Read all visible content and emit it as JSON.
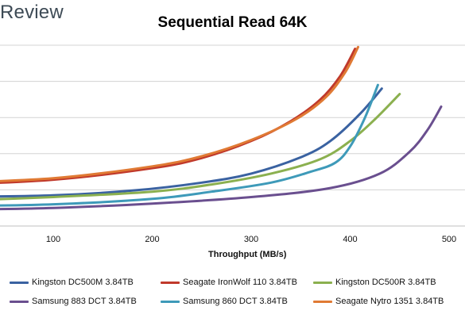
{
  "brand": "Review",
  "chart_data": {
    "type": "line",
    "title": "Sequential Read 64K",
    "xlabel": "Throughput (MB/s)",
    "ylabel": "",
    "x_ticks": [
      100,
      200,
      300,
      400,
      500
    ],
    "xlim": [
      45,
      510
    ],
    "ylim": [
      0,
      5
    ],
    "y_gridlines": [
      1,
      2,
      3,
      4,
      5
    ],
    "grid": "horizontal",
    "legend_position": "bottom",
    "series": [
      {
        "name": "Kingston DC500M 3.84TB",
        "color": "#3a62a1",
        "x": [
          0,
          100,
          180,
          250,
          300,
          350,
          380,
          410,
          432
        ],
        "y": [
          0.8,
          0.85,
          0.98,
          1.2,
          1.45,
          1.9,
          2.35,
          3.1,
          3.8
        ]
      },
      {
        "name": "Seagate IronWolf 110 3.84TB",
        "color": "#c0392b",
        "x": [
          0,
          100,
          200,
          250,
          300,
          340,
          370,
          390,
          405
        ],
        "y": [
          1.15,
          1.28,
          1.6,
          1.88,
          2.35,
          2.9,
          3.5,
          4.15,
          4.9
        ]
      },
      {
        "name": "Kingston DC500R 3.84TB",
        "color": "#8bb04f",
        "x": [
          0,
          100,
          200,
          260,
          320,
          370,
          400,
          425,
          450
        ],
        "y": [
          0.7,
          0.8,
          0.95,
          1.15,
          1.45,
          1.85,
          2.35,
          2.95,
          3.65
        ]
      },
      {
        "name": "Samsung 883 DCT 3.84TB",
        "color": "#6a4f8f",
        "x": [
          0,
          100,
          200,
          300,
          380,
          430,
          460,
          478,
          492
        ],
        "y": [
          0.45,
          0.5,
          0.62,
          0.8,
          1.05,
          1.45,
          2.05,
          2.65,
          3.3
        ]
      },
      {
        "name": "Samsung 860 DCT 3.84TB",
        "color": "#3e9ab9",
        "x": [
          0,
          100,
          200,
          260,
          320,
          360,
          385,
          400,
          415,
          428
        ],
        "y": [
          0.55,
          0.6,
          0.75,
          0.95,
          1.2,
          1.5,
          1.75,
          2.2,
          3.0,
          3.9
        ]
      },
      {
        "name": "Seagate Nytro 1351 3.84TB",
        "color": "#e07a34",
        "x": [
          0,
          100,
          200,
          250,
          300,
          345,
          375,
          395,
          408
        ],
        "y": [
          1.2,
          1.32,
          1.65,
          1.93,
          2.38,
          2.95,
          3.55,
          4.25,
          4.95
        ]
      }
    ]
  }
}
